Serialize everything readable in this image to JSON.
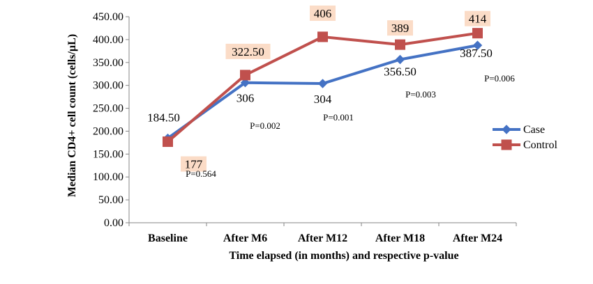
{
  "chart_data": {
    "type": "line",
    "title": "",
    "xlabel": "Time elapsed (in months) and respective p-value",
    "ylabel": "Median CD4+ cell count (cells/µL)",
    "ylim": [
      0,
      450
    ],
    "yticks": [
      "0.00",
      "50.00",
      "100.00",
      "150.00",
      "200.00",
      "250.00",
      "300.00",
      "350.00",
      "400.00",
      "450.00"
    ],
    "categories": [
      "Baseline",
      "After M6",
      "After M12",
      "After M18",
      "After M24"
    ],
    "series": [
      {
        "name": "Case",
        "values": [
          184.5,
          306,
          304,
          356.5,
          387.5
        ],
        "labels": [
          "184.50",
          "306",
          "304",
          "356.50",
          "387.50"
        ],
        "color": "#4472C4",
        "marker": "diamond"
      },
      {
        "name": "Control",
        "values": [
          177,
          322.5,
          406,
          389,
          414
        ],
        "labels": [
          "177",
          "322.50",
          "406",
          "389",
          "414"
        ],
        "color": "#C0504D",
        "marker": "square",
        "label_background": "#FBDCC7"
      }
    ],
    "p_values": [
      "P=0.564",
      "P=0.002",
      "P=0.001",
      "P=0.003",
      "P=0.006"
    ],
    "legend_position": "right",
    "grid": false
  }
}
